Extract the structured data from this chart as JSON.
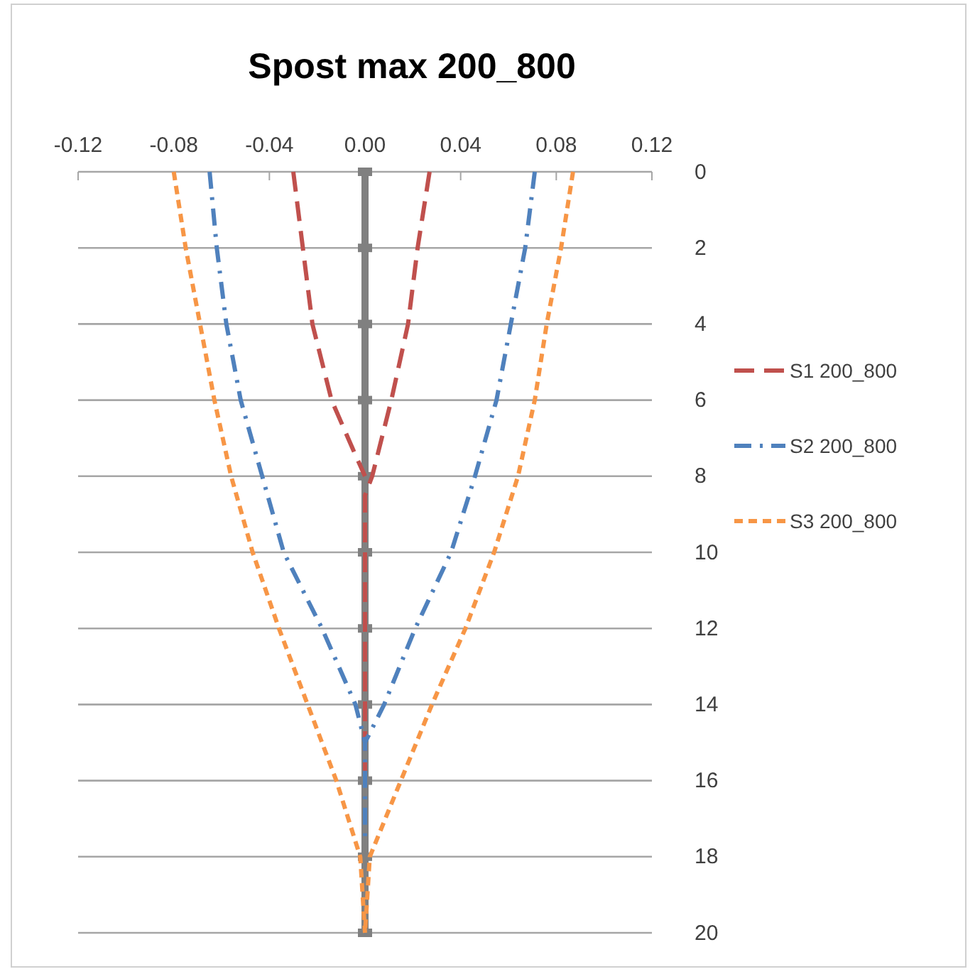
{
  "chart_data": {
    "type": "line",
    "title": "Spost max 200_800",
    "xlim": [
      -0.12,
      0.12
    ],
    "xticks": [
      -0.12,
      -0.08,
      -0.04,
      {
        "value": 0,
        "label": "0.00"
      },
      0.04,
      0.08,
      0.12
    ],
    "ylim": [
      20,
      0
    ],
    "yticks": [
      0,
      2,
      4,
      6,
      8,
      10,
      12,
      14,
      16,
      18,
      20
    ],
    "grid": "y",
    "legend": "right",
    "series": [
      {
        "color": "#808080",
        "line_style": "solid",
        "marker": "square",
        "x": [
          0,
          0,
          0,
          0,
          0,
          0,
          0,
          0,
          0,
          0,
          0
        ],
        "values": [
          0,
          2,
          4,
          6,
          8,
          10,
          12,
          14,
          16,
          18,
          20
        ]
      },
      {
        "name": "S1 200_800",
        "color": "#c0504d",
        "line_style": "dashed",
        "marker": "none",
        "x": [
          0.027,
          0.022,
          0.018,
          0.011,
          0.003,
          0,
          0,
          0,
          0,
          0
        ],
        "values": [
          0,
          2,
          4,
          6,
          8,
          8.5,
          10,
          12,
          14,
          16
        ]
      },
      {
        "color": "#c0504d",
        "line_style": "dashed",
        "marker": "none",
        "x": [
          -0.03,
          -0.026,
          -0.022,
          -0.014,
          -0.005,
          0
        ],
        "values": [
          0,
          2,
          4,
          6,
          7.3,
          8
        ]
      },
      {
        "name": "S2 200_800",
        "color": "#4f81bd",
        "line_style": "dashdot",
        "marker": "none",
        "x": [
          0.071,
          0.067,
          0.061,
          0.055,
          0.046,
          0.036,
          0.021,
          0.008,
          0,
          0,
          0
        ],
        "values": [
          0,
          2,
          4,
          6,
          8,
          10,
          12,
          14,
          15,
          16,
          17.5
        ]
      },
      {
        "color": "#4f81bd",
        "line_style": "dashdot",
        "marker": "none",
        "x": [
          -0.065,
          -0.062,
          -0.058,
          -0.052,
          -0.043,
          -0.034,
          -0.018,
          -0.004,
          0
        ],
        "values": [
          0,
          2,
          4,
          6,
          8,
          10,
          12,
          14,
          15
        ]
      },
      {
        "name": "S3 200_800",
        "color": "#f79646",
        "line_style": "dotted",
        "marker": "none",
        "x": [
          0.087,
          0.082,
          0.076,
          0.071,
          0.064,
          0.054,
          0.042,
          0.028,
          0.015,
          0.002,
          0
        ],
        "values": [
          0,
          2,
          4,
          6,
          8,
          10,
          12,
          14,
          16,
          18,
          20
        ]
      },
      {
        "color": "#f79646",
        "line_style": "dotted",
        "marker": "none",
        "x": [
          -0.08,
          -0.075,
          -0.069,
          -0.063,
          -0.056,
          -0.047,
          -0.036,
          -0.024,
          -0.012,
          -0.002,
          0
        ],
        "values": [
          0,
          2,
          4,
          6,
          8,
          10,
          12,
          14,
          16,
          18,
          20
        ]
      }
    ]
  }
}
